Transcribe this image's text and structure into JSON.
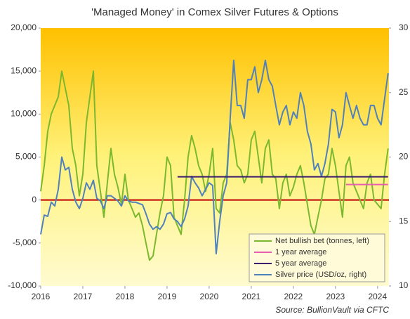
{
  "chart_data": {
    "type": "line",
    "title": "'Managed Money' in Comex Silver Futures & Options",
    "source": "Source: BullionVault via CFTC",
    "xlim": [
      2016,
      2024.27
    ],
    "xticks": [
      2016,
      2017,
      2018,
      2019,
      2020,
      2021,
      2022,
      2023,
      2024
    ],
    "ylim": [
      -10000,
      20000
    ],
    "yticks": [
      {
        "value": -10000,
        "label": "-10,000"
      },
      {
        "value": -5000,
        "label": "-5,000"
      },
      0,
      {
        "value": 5000,
        "label": "5,000"
      },
      {
        "value": 10000,
        "label": "10,000"
      },
      {
        "value": 15000,
        "label": "15,000"
      },
      {
        "value": 20000,
        "label": "20,000"
      }
    ],
    "y2lim": [
      10,
      30
    ],
    "y2ticks": [
      10,
      15,
      20,
      25,
      30
    ],
    "legend": "lower right",
    "x": [
      2016,
      2016.083,
      2016.167,
      2016.25,
      2016.333,
      2016.417,
      2016.5,
      2016.583,
      2016.667,
      2016.75,
      2016.833,
      2016.917,
      2017,
      2017.083,
      2017.167,
      2017.25,
      2017.333,
      2017.417,
      2017.5,
      2017.583,
      2017.667,
      2017.75,
      2017.833,
      2017.917,
      2018,
      2018.083,
      2018.167,
      2018.25,
      2018.333,
      2018.417,
      2018.5,
      2018.583,
      2018.667,
      2018.75,
      2018.833,
      2018.917,
      2019,
      2019.083,
      2019.167,
      2019.25,
      2019.333,
      2019.417,
      2019.5,
      2019.583,
      2019.667,
      2019.75,
      2019.833,
      2019.917,
      2020,
      2020.083,
      2020.167,
      2020.25,
      2020.333,
      2020.417,
      2020.5,
      2020.583,
      2020.667,
      2020.75,
      2020.833,
      2020.917,
      2021,
      2021.083,
      2021.167,
      2021.25,
      2021.333,
      2021.417,
      2021.5,
      2021.583,
      2021.667,
      2021.75,
      2021.833,
      2021.917,
      2022,
      2022.083,
      2022.167,
      2022.25,
      2022.333,
      2022.417,
      2022.5,
      2022.583,
      2022.667,
      2022.75,
      2022.833,
      2022.917,
      2023,
      2023.083,
      2023.167,
      2023.25,
      2023.333,
      2023.417,
      2023.5,
      2023.583,
      2023.667,
      2023.75,
      2023.833,
      2023.917,
      2024,
      2024.083,
      2024.167,
      2024.25
    ],
    "series": [
      {
        "name": "Net bullish bet (tonnes, left)",
        "color": "#7cb82f",
        "values": [
          1000,
          4000,
          8000,
          10000,
          11000,
          12000,
          15000,
          13000,
          11000,
          6000,
          4000,
          500,
          3000,
          9000,
          12000,
          15000,
          4000,
          1000,
          -2000,
          2000,
          6000,
          3000,
          1500,
          -500,
          3000,
          0,
          -1000,
          -2000,
          -1500,
          -3000,
          -5000,
          -7000,
          -6500,
          -4000,
          -1500,
          500,
          5000,
          4000,
          -2000,
          -3000,
          -4000,
          0,
          5000,
          7500,
          6000,
          4000,
          3000,
          1000,
          3000,
          6000,
          -1000,
          -1500,
          2000,
          3000,
          9000,
          7000,
          4000,
          3500,
          2000,
          3000,
          7000,
          8000,
          5000,
          2000,
          6000,
          7000,
          3000,
          2500,
          -1000,
          2000,
          3000,
          500,
          1500,
          3000,
          4000,
          2000,
          -500,
          -3000,
          -4000,
          -2000,
          0,
          2500,
          3000,
          6000,
          4000,
          1000,
          -2000,
          4000,
          5000,
          2000,
          1000,
          0,
          -1000,
          2000,
          3000,
          0,
          -500,
          -1000,
          3000,
          6000
        ]
      },
      {
        "name": "1 year average",
        "color": "#e85fb0",
        "x": [
          2023.25,
          2024.25
        ],
        "values": [
          1800,
          1800
        ]
      },
      {
        "name": "5 year average",
        "color": "#3c1e6e",
        "x": [
          2019.25,
          2024.25
        ],
        "values": [
          2700,
          2700
        ]
      },
      {
        "name": "Silver price (USD/oz, right)",
        "color": "#4f81bd",
        "axis": "y2",
        "values": [
          14,
          15.5,
          15.4,
          16.5,
          16.2,
          17.5,
          20,
          19,
          19.2,
          17.5,
          16.5,
          16,
          16.8,
          18,
          17.5,
          18.2,
          16.8,
          16.6,
          16,
          17,
          17,
          16.8,
          16.6,
          16.2,
          17,
          16.6,
          16.5,
          16.5,
          16.4,
          16.3,
          15.6,
          14.8,
          14.4,
          14.6,
          14.4,
          14.8,
          15.6,
          15.7,
          15.2,
          15,
          14.6,
          15.2,
          16.2,
          18.5,
          18,
          17.6,
          17,
          17.5,
          18,
          17.8,
          12.5,
          15,
          17,
          18,
          23,
          27.5,
          24,
          24,
          23,
          26,
          26,
          27,
          25,
          26,
          27.5,
          26,
          25.5,
          24,
          22.5,
          23.5,
          24,
          22.5,
          23.5,
          23,
          25,
          24,
          22,
          21,
          19,
          19.5,
          18.5,
          19.5,
          21,
          23.7,
          23.5,
          21.5,
          22.5,
          25,
          24,
          23,
          24,
          23,
          22.5,
          22.5,
          24,
          24,
          23,
          22.5,
          24.5,
          26.5
        ]
      }
    ]
  }
}
